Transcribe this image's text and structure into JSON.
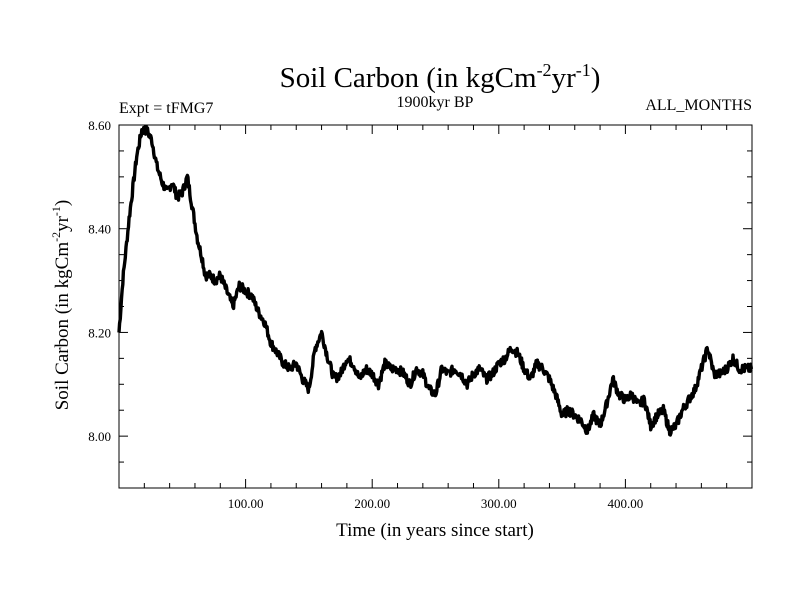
{
  "chart_data": {
    "type": "line",
    "title_main": "Soil Carbon (in kgCm",
    "title_sup1": "-2",
    "title_mid": "yr",
    "title_sup2": "-1",
    "title_close": ")",
    "left_label": "Expt = tFMG7",
    "center_label": "1900kyr BP",
    "right_label": "ALL_MONTHS",
    "xlabel": "Time (in years since start)",
    "ylabel_main": "Soil Carbon (in kgCm",
    "ylabel_sup1": "-2",
    "ylabel_mid": "yr",
    "ylabel_sup2": "-1",
    "ylabel_close": ")",
    "xlim": [
      0,
      500
    ],
    "ylim": [
      7.9,
      8.6
    ],
    "x_ticks": [
      100,
      200,
      300,
      400
    ],
    "x_tick_labels": [
      "100.00",
      "200.00",
      "300.00",
      "400.00"
    ],
    "y_ticks": [
      8.0,
      8.2,
      8.4,
      8.6
    ],
    "y_tick_labels": [
      "8.00",
      "8.20",
      "8.40",
      "8.60"
    ],
    "line_color": "#000000",
    "series": [
      {
        "name": "Soil Carbon",
        "x": [
          0,
          3,
          8,
          14,
          18,
          22,
          26,
          30,
          34,
          38,
          42,
          46,
          50,
          54,
          58,
          62,
          66,
          68,
          72,
          76,
          80,
          85,
          90,
          95,
          100,
          105,
          110,
          115,
          120,
          125,
          130,
          135,
          140,
          145,
          150,
          155,
          160,
          165,
          170,
          175,
          180,
          185,
          190,
          195,
          200,
          205,
          210,
          215,
          220,
          225,
          230,
          235,
          240,
          245,
          250,
          255,
          260,
          265,
          270,
          275,
          280,
          285,
          290,
          295,
          300,
          305,
          310,
          315,
          320,
          325,
          330,
          335,
          340,
          345,
          350,
          355,
          360,
          365,
          370,
          375,
          380,
          385,
          390,
          395,
          400,
          405,
          410,
          415,
          420,
          425,
          430,
          435,
          440,
          445,
          450,
          455,
          460,
          465,
          470,
          475,
          480,
          485,
          490,
          495,
          500
        ],
        "y": [
          8.2,
          8.3,
          8.42,
          8.54,
          8.59,
          8.59,
          8.57,
          8.52,
          8.49,
          8.47,
          8.49,
          8.46,
          8.47,
          8.5,
          8.44,
          8.38,
          8.34,
          8.31,
          8.31,
          8.3,
          8.31,
          8.28,
          8.25,
          8.29,
          8.28,
          8.27,
          8.24,
          8.22,
          8.18,
          8.16,
          8.14,
          8.13,
          8.14,
          8.11,
          8.09,
          8.17,
          8.2,
          8.15,
          8.11,
          8.12,
          8.15,
          8.14,
          8.11,
          8.13,
          8.12,
          8.1,
          8.14,
          8.13,
          8.13,
          8.12,
          8.1,
          8.13,
          8.12,
          8.09,
          8.08,
          8.13,
          8.12,
          8.13,
          8.12,
          8.1,
          8.12,
          8.13,
          8.11,
          8.12,
          8.14,
          8.15,
          8.17,
          8.16,
          8.13,
          8.11,
          8.14,
          8.13,
          8.11,
          8.08,
          8.04,
          8.05,
          8.04,
          8.03,
          8.01,
          8.04,
          8.02,
          8.06,
          8.11,
          8.08,
          8.07,
          8.08,
          8.06,
          8.07,
          8.02,
          8.04,
          8.05,
          8.01,
          8.02,
          8.05,
          8.07,
          8.09,
          8.13,
          8.17,
          8.12,
          8.12,
          8.13,
          8.15,
          8.13,
          8.13,
          8.13
        ]
      }
    ]
  }
}
